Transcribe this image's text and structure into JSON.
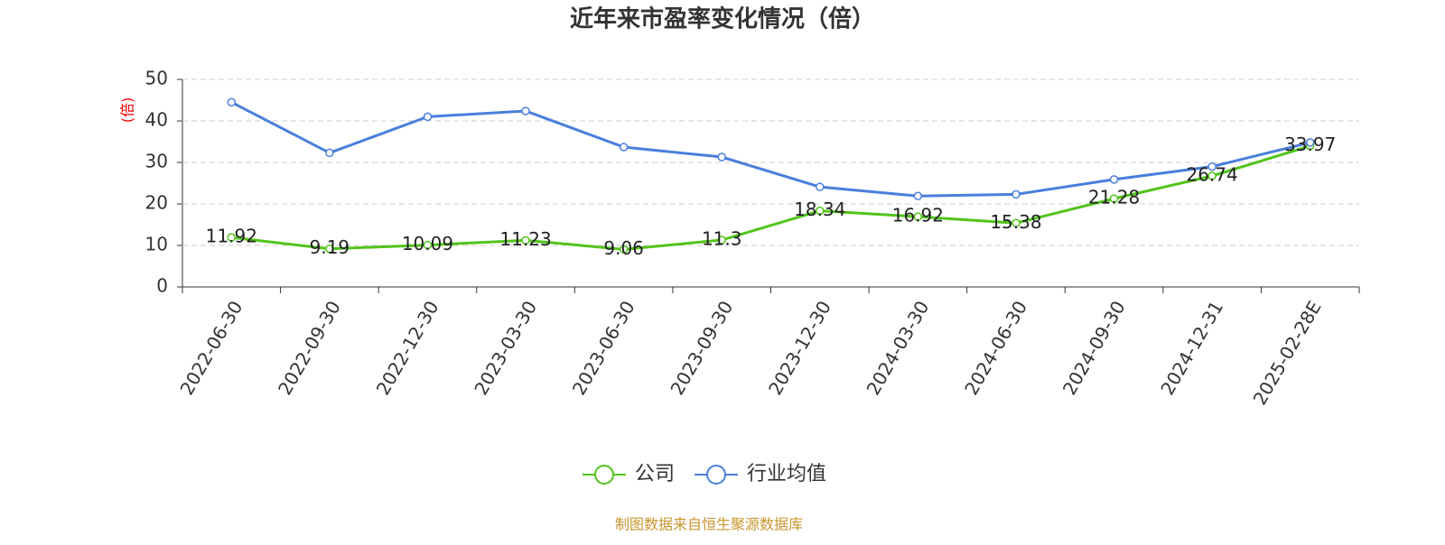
{
  "chart_data": {
    "type": "line",
    "title": "近年来市盈率变化情况（倍）",
    "y_label": "(倍)",
    "source": "制图数据来自恒生聚源数据库",
    "categories": [
      "2022-06-30",
      "2022-09-30",
      "2022-12-30",
      "2023-03-30",
      "2023-06-30",
      "2023-09-30",
      "2023-12-30",
      "2024-03-30",
      "2024-06-30",
      "2024-09-30",
      "2024-12-31",
      "2025-02-28E"
    ],
    "series": [
      {
        "name": "公司",
        "color": "#52c41a",
        "labels": true,
        "values": [
          11.92,
          9.19,
          10.09,
          11.23,
          9.06,
          11.3,
          18.34,
          16.92,
          15.38,
          21.28,
          26.74,
          33.97
        ]
      },
      {
        "name": "行业均值",
        "color": "#4a7fdc",
        "labels": false,
        "values": [
          44.5,
          32.3,
          41,
          42.4,
          33.7,
          31.3,
          24.1,
          21.9,
          22.3,
          25.9,
          29,
          34.8
        ]
      }
    ],
    "ylim": [
      0,
      50
    ],
    "yticks": [
      0,
      10,
      20,
      30,
      40,
      50
    ],
    "grid": true
  }
}
